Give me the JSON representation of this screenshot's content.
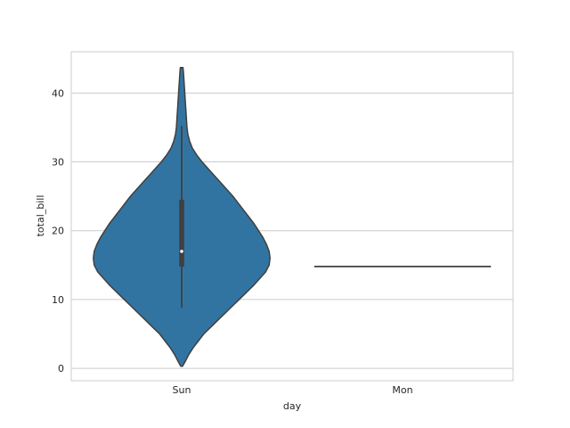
{
  "chart_data": {
    "type": "violin",
    "title": "",
    "xlabel": "day",
    "ylabel": "total_bill",
    "categories": [
      "Sun",
      "Mon"
    ],
    "ylim": [
      -1.8,
      46
    ],
    "yticks": [
      0,
      10,
      20,
      30,
      40
    ],
    "grid": "horizontal",
    "colors": {
      "violin_fill": "#3274a1",
      "violin_edge": "#3f3f3f",
      "grid": "#cccccc",
      "frame": "#cccccc"
    },
    "violins": [
      {
        "category": "Sun",
        "density_profile": [
          [
            0.3,
            0.01
          ],
          [
            1,
            0.04
          ],
          [
            2,
            0.08
          ],
          [
            3,
            0.13
          ],
          [
            4,
            0.19
          ],
          [
            5,
            0.25
          ],
          [
            6,
            0.33
          ],
          [
            7,
            0.41
          ],
          [
            8,
            0.49
          ],
          [
            9,
            0.57
          ],
          [
            10,
            0.65
          ],
          [
            11,
            0.73
          ],
          [
            12,
            0.81
          ],
          [
            13,
            0.88
          ],
          [
            14,
            0.95
          ],
          [
            15,
            0.99
          ],
          [
            16,
            1.0
          ],
          [
            17,
            0.99
          ],
          [
            18,
            0.96
          ],
          [
            19,
            0.92
          ],
          [
            20,
            0.87
          ],
          [
            21,
            0.82
          ],
          [
            22,
            0.76
          ],
          [
            23,
            0.7
          ],
          [
            24,
            0.64
          ],
          [
            25,
            0.58
          ],
          [
            26,
            0.51
          ],
          [
            27,
            0.44
          ],
          [
            28,
            0.37
          ],
          [
            29,
            0.3
          ],
          [
            30,
            0.23
          ],
          [
            31,
            0.17
          ],
          [
            32,
            0.12
          ],
          [
            33,
            0.09
          ],
          [
            34,
            0.07
          ],
          [
            35,
            0.06
          ],
          [
            36,
            0.055
          ],
          [
            37,
            0.05
          ],
          [
            38,
            0.045
          ],
          [
            39,
            0.04
          ],
          [
            40,
            0.035
          ],
          [
            41,
            0.03
          ],
          [
            42,
            0.025
          ],
          [
            43,
            0.02
          ],
          [
            43.7,
            0.015
          ]
        ],
        "whisker": [
          8.8,
          35.2
        ],
        "box": [
          14.8,
          24.5
        ],
        "median": 17.0
      },
      {
        "category": "Mon",
        "single_value": 14.8
      }
    ]
  }
}
